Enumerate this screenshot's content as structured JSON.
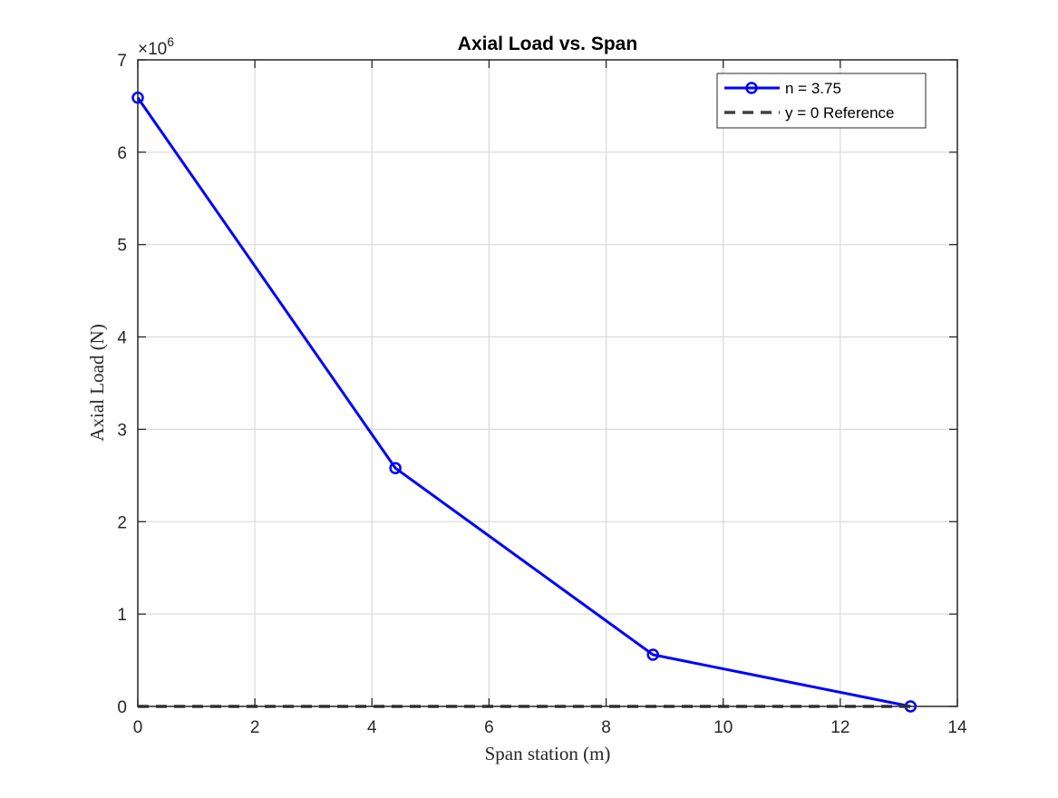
{
  "chart_data": {
    "type": "line",
    "title": "Axial Load vs. Span",
    "xlabel": "Span station (m)",
    "ylabel": "Axial Load (N)",
    "y_exponent_label": "×10",
    "y_exponent": "6",
    "xlim": [
      0,
      14
    ],
    "ylim": [
      0,
      7000000
    ],
    "x_ticks": [
      0,
      2,
      4,
      6,
      8,
      10,
      12,
      14
    ],
    "y_ticks": [
      0,
      1,
      2,
      3,
      4,
      5,
      6,
      7
    ],
    "y_scale": 1000000,
    "grid": true,
    "legend_position": "top-right",
    "series": [
      {
        "name": "n = 3.75",
        "color": "#0000ff",
        "line_style": "solid",
        "marker": "circle",
        "x": [
          0,
          4.4,
          8.8,
          13.2
        ],
        "y": [
          6590000,
          2580000,
          560000,
          0
        ]
      },
      {
        "name": "y = 0 Reference",
        "color": "#404040",
        "line_style": "dashed",
        "marker": "none",
        "x": [
          0,
          13.2
        ],
        "y": [
          0,
          0
        ]
      }
    ]
  }
}
